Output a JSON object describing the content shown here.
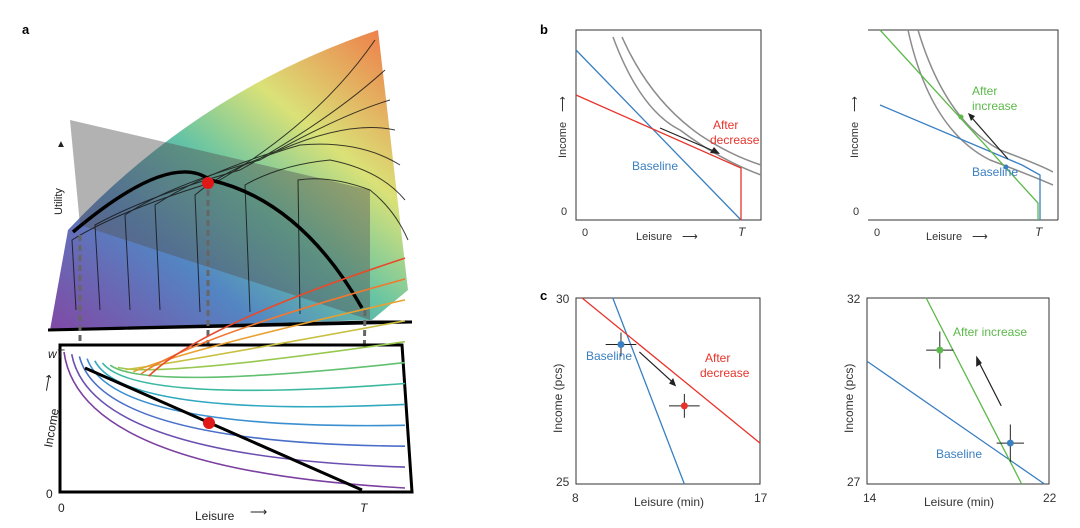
{
  "panels": {
    "a": {
      "label": "a",
      "utility_label": "Utility",
      "income_label": "Income",
      "leisure_label": "Leisure",
      "wT_label": "wT",
      "zero_label": "0",
      "x_zero_label": "0",
      "T_label": "T"
    },
    "b": {
      "label": "b",
      "left": {
        "ylabel": "Income",
        "xlabel": "Leisure",
        "y0": "0",
        "x0": "0",
        "T": "T",
        "baseline": "Baseline",
        "after_1": "After",
        "after_2": "decrease"
      },
      "right": {
        "ylabel": "Income",
        "xlabel": "Leisure",
        "y0": "0",
        "x0": "0",
        "T": "T",
        "baseline": "Baseline",
        "after_1": "After",
        "after_2": "increase"
      }
    },
    "c": {
      "label": "c"
    }
  },
  "colors": {
    "baseline": "#3a7fc1",
    "decrease": "#e8332a",
    "increase": "#5cb84a",
    "indifference": "#8c8c8c"
  },
  "chart_data": [
    {
      "type": "line",
      "xlabel": "Leisure (min)",
      "ylabel": "Income (pcs)",
      "xlim": [
        8,
        17
      ],
      "ylim": [
        25,
        30
      ],
      "xticks": [
        "8",
        "17"
      ],
      "yticks": [
        "25",
        "30"
      ],
      "series": [
        {
          "name": "Baseline budget",
          "color": "#3a7fc1",
          "x": [
            9.8,
            13.3
          ],
          "y": [
            30,
            25
          ]
        },
        {
          "name": "After decrease budget",
          "color": "#e8332a",
          "x": [
            8.3,
            17
          ],
          "y": [
            30,
            26.1
          ]
        }
      ],
      "points": [
        {
          "name": "Baseline",
          "x": 10.2,
          "y": 28.75,
          "xerr": 0.75,
          "yerr": 0.32,
          "color": "#3a7fc1"
        },
        {
          "name": "After decrease",
          "x": 13.3,
          "y": 27.1,
          "xerr": 0.75,
          "yerr": 0.32,
          "color": "#e8332a"
        }
      ],
      "annotations": {
        "baseline": "Baseline",
        "after_1": "After",
        "after_2": "decrease"
      }
    },
    {
      "type": "line",
      "xlabel": "Leisure (min)",
      "ylabel": "Income (pcs)",
      "xlim": [
        14,
        22
      ],
      "ylim": [
        27,
        32
      ],
      "xticks": [
        "14",
        "22"
      ],
      "yticks": [
        "27",
        "32"
      ],
      "series": [
        {
          "name": "Baseline budget",
          "color": "#3a7fc1",
          "x": [
            14,
            21.8
          ],
          "y": [
            30.3,
            27
          ]
        },
        {
          "name": "After increase budget",
          "color": "#5cb84a",
          "x": [
            16.6,
            20.8
          ],
          "y": [
            32,
            27
          ]
        }
      ],
      "points": [
        {
          "name": "After increase",
          "x": 17.2,
          "y": 30.6,
          "xerr": 0.6,
          "yerr": 0.5,
          "color": "#5cb84a"
        },
        {
          "name": "Baseline",
          "x": 20.3,
          "y": 28.1,
          "xerr": 0.6,
          "yerr": 0.5,
          "color": "#3a7fc1"
        }
      ],
      "annotations": {
        "after": "After increase",
        "baseline": "Baseline"
      }
    }
  ]
}
